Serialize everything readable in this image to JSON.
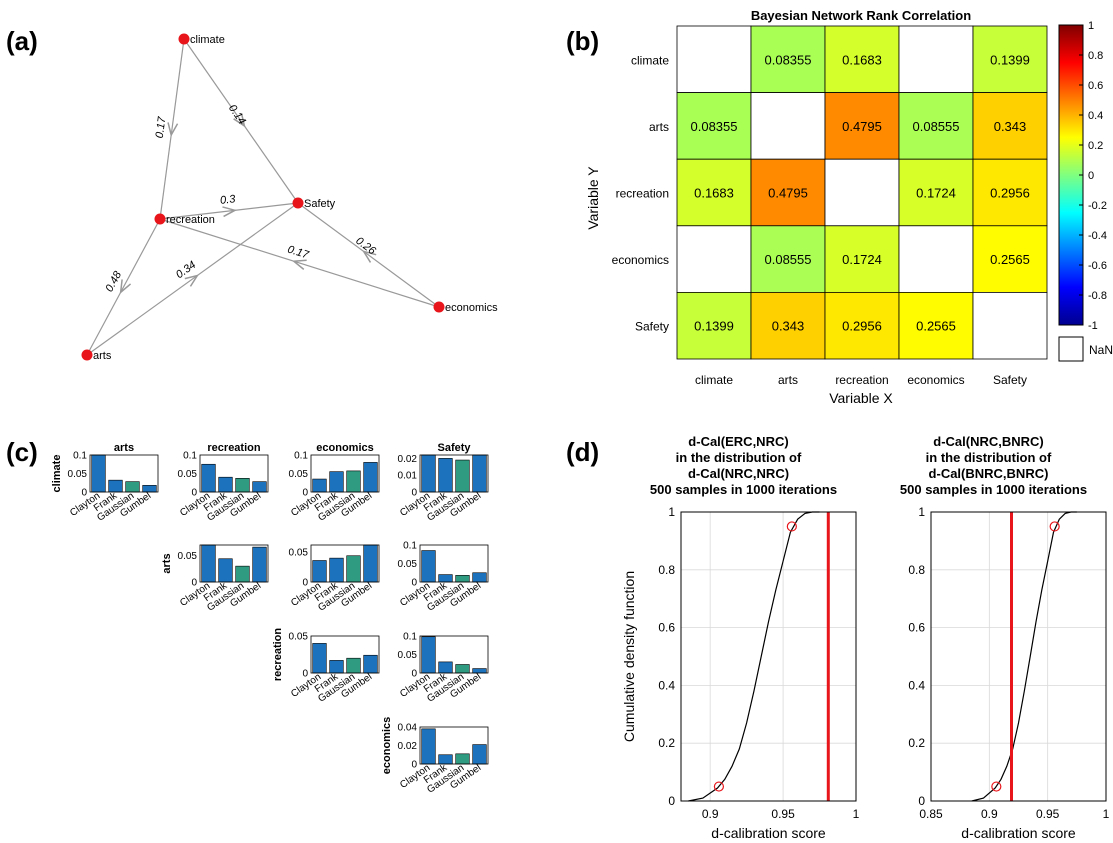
{
  "panel_labels": {
    "a": "(a)",
    "b": "(b)",
    "c": "(c)",
    "d": "(d)"
  },
  "colors": {
    "node": "#e8161b",
    "edge": "#999999",
    "bar_blue": "#1c72bd",
    "bar_teal": "#2f9c82",
    "cdf_line": "#000000",
    "marker": "#e8161b",
    "vline": "#e8161b",
    "grid": "#d9d9d9"
  },
  "chart_data": [
    {
      "type": "network",
      "nodes": [
        {
          "id": "climate",
          "label": "climate"
        },
        {
          "id": "recreation",
          "label": "recreation"
        },
        {
          "id": "Safety",
          "label": "Safety"
        },
        {
          "id": "economics",
          "label": "economics"
        },
        {
          "id": "arts",
          "label": "arts"
        }
      ],
      "edges": [
        {
          "from": "climate",
          "to": "recreation",
          "label": "0.17"
        },
        {
          "from": "climate",
          "to": "Safety",
          "label": "0.14"
        },
        {
          "from": "recreation",
          "to": "Safety",
          "label": "0.3"
        },
        {
          "from": "economics",
          "to": "recreation",
          "label": "0.17"
        },
        {
          "from": "economics",
          "to": "Safety",
          "label": "0.26"
        },
        {
          "from": "recreation",
          "to": "arts",
          "label": "0.48"
        },
        {
          "from": "arts",
          "to": "Safety",
          "label": "0.34"
        }
      ]
    },
    {
      "type": "heatmap",
      "title": "Bayesian Network Rank Correlation",
      "xlabel": "Variable X",
      "ylabel": "Variable Y",
      "x_categories": [
        "climate",
        "arts",
        "recreation",
        "economics",
        "Safety"
      ],
      "y_categories": [
        "climate",
        "arts",
        "recreation",
        "economics",
        "Safety"
      ],
      "values": [
        [
          null,
          0.08355,
          0.1683,
          null,
          0.1399
        ],
        [
          0.08355,
          null,
          0.4795,
          0.08555,
          0.343
        ],
        [
          0.1683,
          0.4795,
          null,
          0.1724,
          0.2956
        ],
        [
          null,
          0.08555,
          0.1724,
          null,
          0.2565
        ],
        [
          0.1399,
          0.343,
          0.2956,
          0.2565,
          null
        ]
      ],
      "value_labels": [
        [
          "",
          "0.08355",
          "0.1683",
          "",
          "0.1399"
        ],
        [
          "0.08355",
          "",
          "0.4795",
          "0.08555",
          "0.343"
        ],
        [
          "0.1683",
          "0.4795",
          "",
          "0.1724",
          "0.2956"
        ],
        [
          "",
          "0.08555",
          "0.1724",
          "",
          "0.2565"
        ],
        [
          "0.1399",
          "0.343",
          "0.2956",
          "0.2565",
          ""
        ]
      ],
      "colorbar": {
        "range": [
          -1,
          1
        ],
        "ticks": [
          "1",
          "0.8",
          "0.6",
          "0.4",
          "0.2",
          "0",
          "-0.2",
          "-0.4",
          "-0.6",
          "-0.8",
          "-1"
        ],
        "nan_label": "NaN"
      }
    },
    {
      "type": "bar",
      "copulas": [
        "Clayton",
        "Frank",
        "Gaussian",
        "Gumbel"
      ],
      "selected_index": 2,
      "subplots": [
        {
          "col_title": "arts",
          "row_label": "climate",
          "yticks": [
            "0.1",
            "0.05",
            "0"
          ],
          "ylim": [
            0,
            0.1
          ],
          "values": [
            0.1,
            0.032,
            0.028,
            0.018
          ]
        },
        {
          "col_title": "recreation",
          "row_label": "",
          "yticks": [
            "0.1",
            "0.05",
            "0"
          ],
          "ylim": [
            0,
            0.1
          ],
          "values": [
            0.075,
            0.04,
            0.037,
            0.028
          ]
        },
        {
          "col_title": "economics",
          "row_label": "",
          "yticks": [
            "0.1",
            "0.05",
            "0"
          ],
          "ylim": [
            0,
            0.1
          ],
          "values": [
            0.035,
            0.055,
            0.057,
            0.08
          ]
        },
        {
          "col_title": "Safety",
          "row_label": "",
          "yticks": [
            "0.02",
            "0.01",
            "0"
          ],
          "ylim": [
            0,
            0.022
          ],
          "values": [
            0.022,
            0.02,
            0.019,
            0.022
          ]
        },
        {
          "col_title": "",
          "row_label": "arts",
          "yticks": [
            "0.05",
            "0"
          ],
          "ylim": [
            0,
            0.07
          ],
          "values": [
            0.07,
            0.044,
            0.03,
            0.066
          ]
        },
        {
          "col_title": "",
          "row_label": "",
          "yticks": [
            "0.05",
            "0"
          ],
          "ylim": [
            0,
            0.062
          ],
          "values": [
            0.036,
            0.04,
            0.044,
            0.062
          ]
        },
        {
          "col_title": "",
          "row_label": "",
          "yticks": [
            "0.1",
            "0.05",
            "0"
          ],
          "ylim": [
            0,
            0.1
          ],
          "values": [
            0.085,
            0.02,
            0.018,
            0.025
          ]
        },
        {
          "col_title": "",
          "row_label": "recreation",
          "yticks": [
            "0.05",
            "0"
          ],
          "ylim": [
            0,
            0.05
          ],
          "values": [
            0.04,
            0.017,
            0.02,
            0.024
          ]
        },
        {
          "col_title": "",
          "row_label": "",
          "yticks": [
            "0.1",
            "0.05",
            "0"
          ],
          "ylim": [
            0,
            0.1
          ],
          "values": [
            0.098,
            0.03,
            0.023,
            0.012
          ]
        },
        {
          "col_title": "",
          "row_label": "economics",
          "yticks": [
            "0.04",
            "0.02",
            "0"
          ],
          "ylim": [
            0,
            0.04
          ],
          "values": [
            0.038,
            0.01,
            0.011,
            0.021
          ]
        }
      ]
    },
    {
      "type": "line",
      "title": [
        "d-Cal(ERC,NRC)",
        "in the distribution of",
        "d-Cal(NRC,NRC)",
        "500 samples in 1000 iterations"
      ],
      "xlabel": "d-calibration score",
      "ylabel": "Cumulative density function",
      "xlim": [
        0.88,
        1.0
      ],
      "ylim": [
        0,
        1
      ],
      "xticks": [
        "0.9",
        "0.95",
        "1"
      ],
      "yticks": [
        "0",
        "0.2",
        "0.4",
        "0.6",
        "0.8",
        "1"
      ],
      "cdf_quantiles": {
        "x": [
          0.885,
          0.895,
          0.905,
          0.91,
          0.915,
          0.92,
          0.925,
          0.93,
          0.935,
          0.94,
          0.945,
          0.95,
          0.955,
          0.96,
          0.965,
          0.97,
          0.975
        ],
        "y": [
          0,
          0.01,
          0.045,
          0.075,
          0.12,
          0.18,
          0.27,
          0.38,
          0.5,
          0.62,
          0.73,
          0.83,
          0.93,
          0.975,
          0.995,
          1,
          1
        ]
      },
      "markers": [
        {
          "x": 0.906,
          "y": 0.05
        },
        {
          "x": 0.956,
          "y": 0.95
        }
      ],
      "vline_x": 0.981
    },
    {
      "type": "line",
      "title": [
        "d-Cal(NRC,BNRC)",
        "in the distribution of",
        "d-Cal(BNRC,BNRC)",
        "500 samples in 1000 iterations"
      ],
      "xlabel": "d-calibration score",
      "ylabel": "",
      "xlim": [
        0.85,
        1.0
      ],
      "ylim": [
        0,
        1
      ],
      "xticks": [
        "0.85",
        "0.9",
        "0.95",
        "1"
      ],
      "yticks": [
        "0",
        "0.2",
        "0.4",
        "0.6",
        "0.8",
        "1"
      ],
      "cdf_quantiles": {
        "x": [
          0.885,
          0.895,
          0.905,
          0.91,
          0.915,
          0.92,
          0.925,
          0.93,
          0.935,
          0.94,
          0.945,
          0.95,
          0.955,
          0.96,
          0.965,
          0.97,
          0.975
        ],
        "y": [
          0,
          0.01,
          0.045,
          0.075,
          0.12,
          0.18,
          0.27,
          0.38,
          0.5,
          0.62,
          0.73,
          0.83,
          0.93,
          0.975,
          0.995,
          1,
          1
        ]
      },
      "markers": [
        {
          "x": 0.906,
          "y": 0.05
        },
        {
          "x": 0.956,
          "y": 0.95
        }
      ],
      "vline_x": 0.919
    }
  ]
}
